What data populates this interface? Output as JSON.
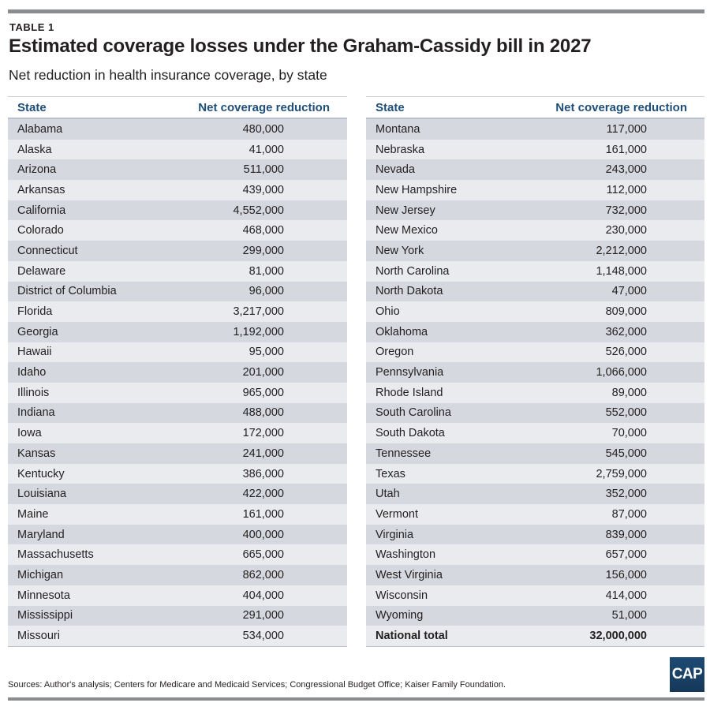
{
  "eyebrow": "TABLE 1",
  "title": "Estimated coverage losses under the Graham-Cassidy bill in 2027",
  "subtitle": "Net reduction in health insurance coverage, by state",
  "columns": {
    "state": "State",
    "value": "Net coverage reduction"
  },
  "left_rows": [
    {
      "state": "Alabama",
      "value": "480,000"
    },
    {
      "state": "Alaska",
      "value": "41,000"
    },
    {
      "state": "Arizona",
      "value": "511,000"
    },
    {
      "state": "Arkansas",
      "value": "439,000"
    },
    {
      "state": "California",
      "value": "4,552,000"
    },
    {
      "state": "Colorado",
      "value": "468,000"
    },
    {
      "state": "Connecticut",
      "value": "299,000"
    },
    {
      "state": "Delaware",
      "value": "81,000"
    },
    {
      "state": "District of Columbia",
      "value": "96,000"
    },
    {
      "state": "Florida",
      "value": "3,217,000"
    },
    {
      "state": "Georgia",
      "value": "1,192,000"
    },
    {
      "state": "Hawaii",
      "value": "95,000"
    },
    {
      "state": "Idaho",
      "value": "201,000"
    },
    {
      "state": "Illinois",
      "value": "965,000"
    },
    {
      "state": "Indiana",
      "value": "488,000"
    },
    {
      "state": "Iowa",
      "value": "172,000"
    },
    {
      "state": "Kansas",
      "value": "241,000"
    },
    {
      "state": "Kentucky",
      "value": "386,000"
    },
    {
      "state": "Louisiana",
      "value": "422,000"
    },
    {
      "state": "Maine",
      "value": "161,000"
    },
    {
      "state": "Maryland",
      "value": "400,000"
    },
    {
      "state": "Massachusetts",
      "value": "665,000"
    },
    {
      "state": "Michigan",
      "value": "862,000"
    },
    {
      "state": "Minnesota",
      "value": "404,000"
    },
    {
      "state": "Mississippi",
      "value": "291,000"
    },
    {
      "state": "Missouri",
      "value": "534,000"
    }
  ],
  "right_rows": [
    {
      "state": "Montana",
      "value": "117,000"
    },
    {
      "state": "Nebraska",
      "value": "161,000"
    },
    {
      "state": "Nevada",
      "value": "243,000"
    },
    {
      "state": "New Hampshire",
      "value": "112,000"
    },
    {
      "state": "New Jersey",
      "value": "732,000"
    },
    {
      "state": "New Mexico",
      "value": "230,000"
    },
    {
      "state": "New York",
      "value": "2,212,000"
    },
    {
      "state": "North Carolina",
      "value": "1,148,000"
    },
    {
      "state": "North Dakota",
      "value": "47,000"
    },
    {
      "state": "Ohio",
      "value": "809,000"
    },
    {
      "state": "Oklahoma",
      "value": "362,000"
    },
    {
      "state": "Oregon",
      "value": "526,000"
    },
    {
      "state": "Pennsylvania",
      "value": "1,066,000"
    },
    {
      "state": "Rhode Island",
      "value": "89,000"
    },
    {
      "state": "South Carolina",
      "value": "552,000"
    },
    {
      "state": "South Dakota",
      "value": "70,000"
    },
    {
      "state": "Tennessee",
      "value": "545,000"
    },
    {
      "state": "Texas",
      "value": "2,759,000"
    },
    {
      "state": "Utah",
      "value": "352,000"
    },
    {
      "state": "Vermont",
      "value": "87,000"
    },
    {
      "state": "Virginia",
      "value": "839,000"
    },
    {
      "state": "Washington",
      "value": "657,000"
    },
    {
      "state": "West Virginia",
      "value": "156,000"
    },
    {
      "state": "Wisconsin",
      "value": "414,000"
    },
    {
      "state": "Wyoming",
      "value": "51,000"
    }
  ],
  "total": {
    "state": "National total",
    "value": "32,000,000"
  },
  "sources": "Sources: Author's analysis; Centers for Medicare and Medicaid Services; Congressional Budget Office; Kaiser Family Foundation.",
  "logo": {
    "text": "CAP",
    "icon": "cap-logo"
  },
  "colors": {
    "header_text": "#1f4e79",
    "row_dark": "#d5d8de",
    "row_light": "#e9ebef",
    "logo_bg": "#1d4a73",
    "rule": "#8a8d90"
  }
}
